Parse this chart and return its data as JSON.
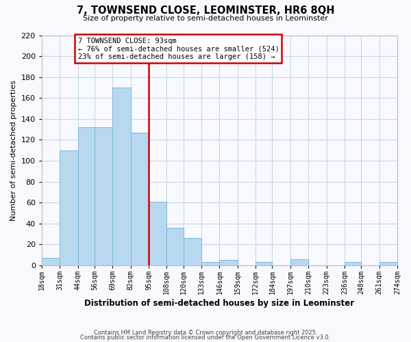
{
  "title": "7, TOWNSEND CLOSE, LEOMINSTER, HR6 8QH",
  "subtitle": "Size of property relative to semi-detached houses in Leominster",
  "xlabel": "Distribution of semi-detached houses by size in Leominster",
  "ylabel": "Number of semi-detached properties",
  "bin_edges": [
    18,
    31,
    44,
    56,
    69,
    82,
    95,
    108,
    120,
    133,
    146,
    159,
    172,
    184,
    197,
    210,
    223,
    236,
    248,
    261,
    274
  ],
  "counts": [
    7,
    110,
    132,
    132,
    170,
    127,
    61,
    36,
    26,
    3,
    5,
    0,
    3,
    0,
    6,
    0,
    0,
    3,
    0,
    3
  ],
  "bar_color": "#b8d8f0",
  "bar_edge_color": "#7ab8d8",
  "property_line_x": 95,
  "annotation_title": "7 TOWNSEND CLOSE: 93sqm",
  "annotation_line1": "← 76% of semi-detached houses are smaller (524)",
  "annotation_line2": "23% of semi-detached houses are larger (158) →",
  "annotation_box_color": "#ffffff",
  "annotation_box_edge": "#cc0000",
  "property_line_color": "#cc0000",
  "ylim": [
    0,
    220
  ],
  "yticks": [
    0,
    20,
    40,
    60,
    80,
    100,
    120,
    140,
    160,
    180,
    200,
    220
  ],
  "tick_labels": [
    "18sqm",
    "31sqm",
    "44sqm",
    "56sqm",
    "69sqm",
    "82sqm",
    "95sqm",
    "108sqm",
    "120sqm",
    "133sqm",
    "146sqm",
    "159sqm",
    "172sqm",
    "184sqm",
    "197sqm",
    "210sqm",
    "223sqm",
    "236sqm",
    "248sqm",
    "261sqm",
    "274sqm"
  ],
  "footer1": "Contains HM Land Registry data © Crown copyright and database right 2025.",
  "footer2": "Contains public sector information licensed under the Open Government Licence v3.0.",
  "background_color": "#f8f8ff",
  "grid_color": "#c5d8ea"
}
